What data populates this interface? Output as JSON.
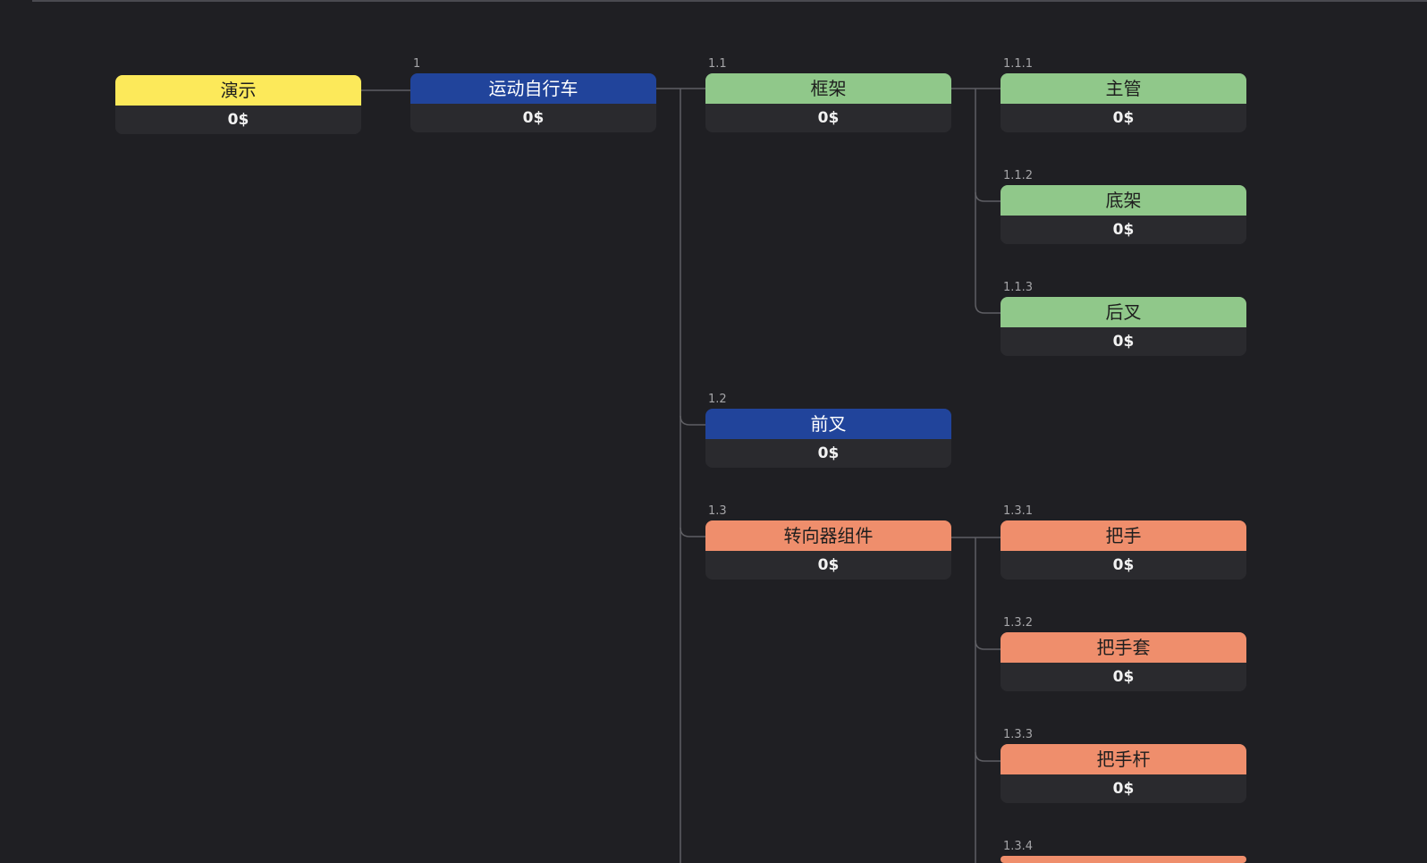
{
  "tree": {
    "root": {
      "label": "演示",
      "value": "0$"
    },
    "nodes": [
      {
        "code": "1",
        "label": "运动自行车",
        "value": "0$"
      },
      {
        "code": "1.1",
        "label": "框架",
        "value": "0$"
      },
      {
        "code": "1.1.1",
        "label": "主管",
        "value": "0$"
      },
      {
        "code": "1.1.2",
        "label": "底架",
        "value": "0$"
      },
      {
        "code": "1.1.3",
        "label": "后叉",
        "value": "0$"
      },
      {
        "code": "1.2",
        "label": "前叉",
        "value": "0$"
      },
      {
        "code": "1.3",
        "label": "转向器组件",
        "value": "0$"
      },
      {
        "code": "1.3.1",
        "label": "把手",
        "value": "0$"
      },
      {
        "code": "1.3.2",
        "label": "把手套",
        "value": "0$"
      },
      {
        "code": "1.3.3",
        "label": "把手杆",
        "value": "0$"
      },
      {
        "code": "1.3.4",
        "label": "",
        "value": ""
      }
    ]
  },
  "colors": {
    "background": "#1f1f23",
    "root": "#fce95a",
    "blue": "#21449b",
    "green": "#90c88a",
    "orange": "#ef8e6c",
    "value_bg": "#2a2a2e",
    "connector": "#5f5f64"
  }
}
